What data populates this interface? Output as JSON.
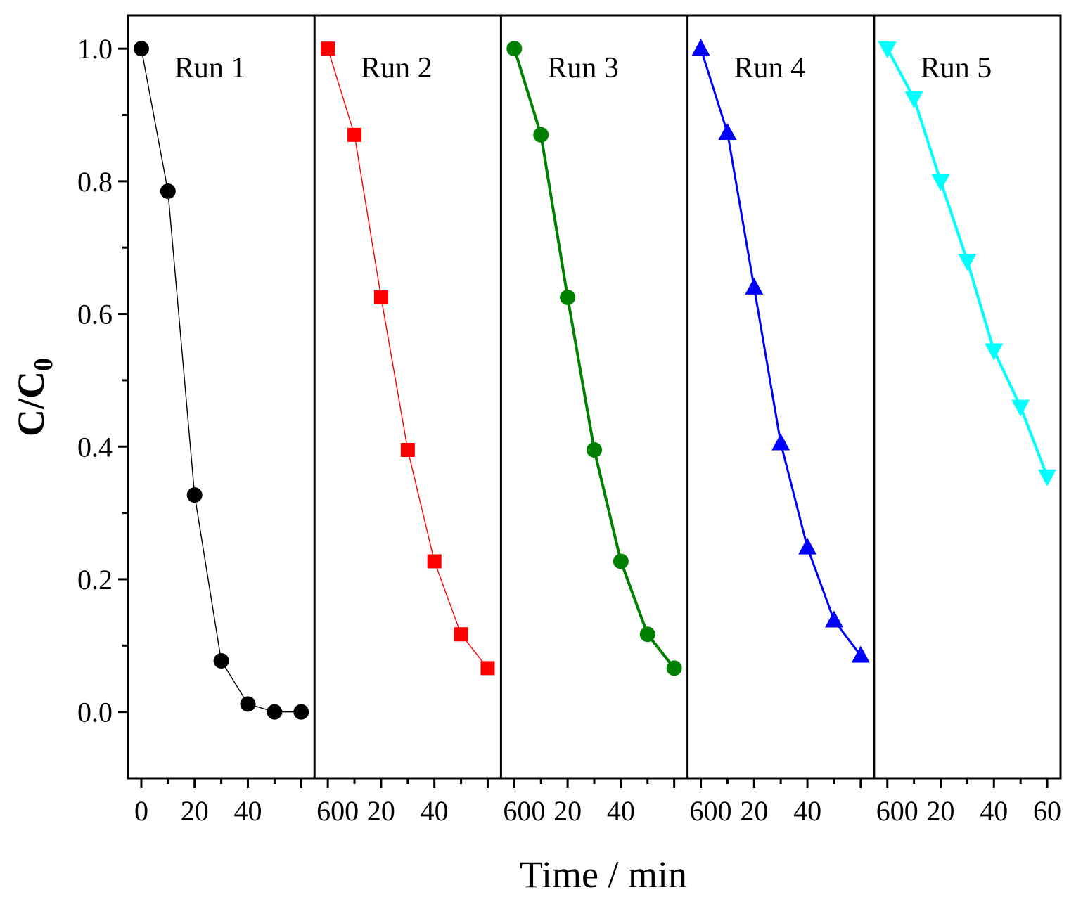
{
  "chart_data": {
    "type": "line",
    "xlabel": "Time / min",
    "ylabel": "C/C0",
    "ylabel_main": "C/C",
    "ylabel_sub": "0",
    "ylim": [
      -0.1,
      1.05
    ],
    "yticks": [
      0.0,
      0.2,
      0.4,
      0.6,
      0.8,
      1.0
    ],
    "ytick_labels": [
      "0.0",
      "0.2",
      "0.4",
      "0.6",
      "0.8",
      "1.0"
    ],
    "xlim": [
      -5,
      65
    ],
    "xticks": [
      0,
      20,
      40,
      60
    ],
    "xtick_labels": [
      [
        "0",
        "20",
        "40"
      ],
      [
        "600",
        "20",
        "40"
      ],
      [
        "600",
        "20",
        "40"
      ],
      [
        "600",
        "20",
        "40"
      ],
      [
        "600",
        "20",
        "40",
        "60"
      ]
    ],
    "x": [
      0,
      10,
      20,
      30,
      40,
      50,
      60
    ],
    "series": [
      {
        "name": "Run 1",
        "color": "#000000",
        "marker": "circle",
        "values": [
          1.0,
          0.785,
          0.327,
          0.077,
          0.012,
          0.0,
          0.0
        ]
      },
      {
        "name": "Run 2",
        "color": "#ff0000",
        "marker": "square",
        "values": [
          1.0,
          0.87,
          0.625,
          0.395,
          0.227,
          0.117,
          0.066
        ]
      },
      {
        "name": "Run 3",
        "color": "#008000",
        "marker": "circle",
        "values": [
          1.0,
          0.87,
          0.625,
          0.395,
          0.227,
          0.117,
          0.066
        ]
      },
      {
        "name": "Run 4",
        "color": "#0000ff",
        "marker": "triangle-up",
        "values": [
          1.0,
          0.873,
          0.64,
          0.405,
          0.248,
          0.138,
          0.085
        ]
      },
      {
        "name": "Run 5",
        "color": "#00ffff",
        "marker": "triangle-down",
        "values": [
          1.0,
          0.925,
          0.8,
          0.68,
          0.545,
          0.46,
          0.355
        ]
      }
    ]
  }
}
